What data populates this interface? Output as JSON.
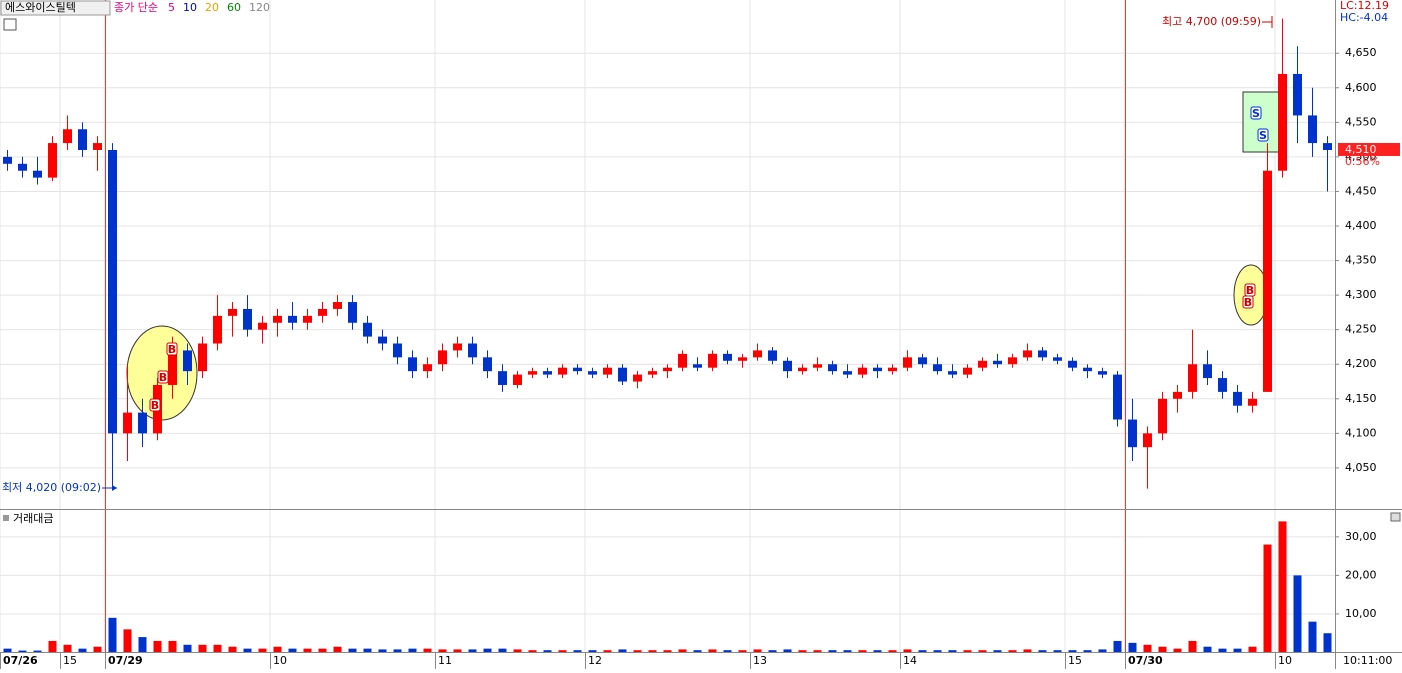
{
  "chart_data": {
    "type": "candlestick",
    "title": "에스와이스틸텍",
    "indicator": "종가 단순",
    "ma_periods": [
      5,
      10,
      20,
      60,
      120
    ],
    "ma_colors": [
      "#e0007f",
      "#0000cc",
      "#e8a000",
      "#008800",
      "#888888"
    ],
    "lc_label": "LC:12.19",
    "hc_label": "HC:-4.04",
    "up_color": "#ff0000",
    "down_color": "#0033cc",
    "grid": true,
    "categories": [
      "07/26",
      null,
      null,
      null,
      "15",
      null,
      null,
      "07/29",
      null,
      null,
      null,
      null,
      null,
      null,
      null,
      null,
      null,
      null,
      "10",
      null,
      null,
      null,
      null,
      null,
      null,
      null,
      null,
      null,
      null,
      "11",
      null,
      null,
      null,
      null,
      null,
      null,
      null,
      null,
      null,
      "12",
      null,
      null,
      null,
      null,
      null,
      null,
      null,
      null,
      null,
      null,
      "13",
      null,
      null,
      null,
      null,
      null,
      null,
      null,
      null,
      null,
      "14",
      null,
      null,
      null,
      null,
      null,
      null,
      null,
      null,
      null,
      null,
      "15",
      null,
      null,
      null,
      "07/30",
      null,
      null,
      null,
      null,
      null,
      null,
      null,
      null,
      null,
      "10",
      null,
      null,
      null
    ],
    "open": [
      4500,
      4490,
      4480,
      4470,
      4520,
      4540,
      4510,
      4510,
      4100,
      4130,
      4100,
      4170,
      4220,
      4190,
      4230,
      4270,
      4280,
      4250,
      4260,
      4270,
      4260,
      4270,
      4280,
      4290,
      4260,
      4240,
      4230,
      4210,
      4190,
      4200,
      4220,
      4230,
      4210,
      4190,
      4170,
      4185,
      4190,
      4185,
      4195,
      4190,
      4185,
      4195,
      4175,
      4185,
      4190,
      4195,
      4200,
      4195,
      4215,
      4205,
      4210,
      4220,
      4205,
      4190,
      4195,
      4200,
      4190,
      4185,
      4195,
      4190,
      4195,
      4210,
      4200,
      4190,
      4185,
      4195,
      4205,
      4200,
      4210,
      4220,
      4210,
      4205,
      4195,
      4190,
      4185,
      4120,
      4080,
      4100,
      4150,
      4160,
      4200,
      4180,
      4160,
      4140,
      4160,
      4480,
      4620,
      4560,
      4520
    ],
    "high": [
      4510,
      4500,
      4500,
      4530,
      4560,
      4550,
      4530,
      4520,
      4200,
      4150,
      4180,
      4240,
      4230,
      4240,
      4300,
      4290,
      4300,
      4270,
      4280,
      4290,
      4280,
      4290,
      4300,
      4300,
      4270,
      4250,
      4240,
      4220,
      4210,
      4230,
      4240,
      4240,
      4220,
      4200,
      4190,
      4195,
      4195,
      4200,
      4200,
      4195,
      4200,
      4200,
      4190,
      4195,
      4200,
      4220,
      4210,
      4220,
      4220,
      4215,
      4230,
      4225,
      4210,
      4200,
      4210,
      4205,
      4200,
      4200,
      4200,
      4200,
      4220,
      4215,
      4210,
      4200,
      4200,
      4210,
      4215,
      4215,
      4230,
      4225,
      4215,
      4210,
      4200,
      4195,
      4190,
      4150,
      4110,
      4160,
      4170,
      4250,
      4220,
      4190,
      4170,
      4160,
      4520,
      4700,
      4660,
      4600,
      4530
    ],
    "low": [
      4480,
      4470,
      4460,
      4465,
      4510,
      4500,
      4480,
      4020,
      4060,
      4080,
      4090,
      4150,
      4170,
      4180,
      4220,
      4240,
      4240,
      4230,
      4240,
      4250,
      4250,
      4260,
      4270,
      4250,
      4230,
      4220,
      4200,
      4180,
      4180,
      4190,
      4210,
      4200,
      4180,
      4160,
      4165,
      4180,
      4180,
      4180,
      4185,
      4180,
      4180,
      4170,
      4165,
      4180,
      4180,
      4190,
      4190,
      4190,
      4200,
      4195,
      4205,
      4200,
      4180,
      4185,
      4190,
      4185,
      4180,
      4180,
      4180,
      4185,
      4190,
      4195,
      4185,
      4180,
      4180,
      4190,
      4195,
      4195,
      4205,
      4205,
      4200,
      4190,
      4180,
      4180,
      4110,
      4060,
      4020,
      4090,
      4130,
      4150,
      4170,
      4150,
      4130,
      4130,
      4160,
      4470,
      4520,
      4500,
      4450
    ],
    "close": [
      4490,
      4480,
      4470,
      4520,
      4540,
      4510,
      4520,
      4100,
      4130,
      4100,
      4170,
      4220,
      4190,
      4230,
      4270,
      4280,
      4250,
      4260,
      4270,
      4260,
      4270,
      4280,
      4290,
      4260,
      4240,
      4230,
      4210,
      4190,
      4200,
      4220,
      4230,
      4210,
      4190,
      4170,
      4185,
      4190,
      4185,
      4195,
      4190,
      4185,
      4195,
      4175,
      4185,
      4190,
      4195,
      4215,
      4195,
      4215,
      4205,
      4210,
      4220,
      4205,
      4190,
      4195,
      4200,
      4190,
      4185,
      4195,
      4190,
      4195,
      4210,
      4200,
      4190,
      4185,
      4195,
      4205,
      4200,
      4210,
      4220,
      4210,
      4205,
      4195,
      4190,
      4185,
      4120,
      4080,
      4100,
      4150,
      4160,
      4200,
      4180,
      4160,
      4140,
      4150,
      4480,
      4620,
      4560,
      4520,
      4510
    ],
    "ylim": [
      3992,
      4727
    ],
    "yticks": [
      {
        "value": 4050,
        "label": "4,050"
      },
      {
        "value": 4100,
        "label": "4,100"
      },
      {
        "value": 4150,
        "label": "4,150"
      },
      {
        "value": 4200,
        "label": "4,200"
      },
      {
        "value": 4250,
        "label": "4,250"
      },
      {
        "value": 4300,
        "label": "4,300"
      },
      {
        "value": 4350,
        "label": "4,350"
      },
      {
        "value": 4400,
        "label": "4,400"
      },
      {
        "value": 4450,
        "label": "4,450"
      },
      {
        "value": 4500,
        "label": "4,500"
      },
      {
        "value": 4550,
        "label": "4,550"
      },
      {
        "value": 4600,
        "label": "4,600"
      },
      {
        "value": 4650,
        "label": "4,650"
      }
    ],
    "last_price": {
      "value": 4510,
      "label": "4,510"
    },
    "change_label": "0.56%",
    "annotations": [
      "최고 4,700 (09:59)",
      "최저 4,020 (09:02)"
    ],
    "markers": [
      "B",
      "B",
      "B",
      "B",
      "B",
      "S",
      "S"
    ],
    "volume": {
      "title": "거래대금",
      "values": [
        1,
        0.5,
        0.5,
        3,
        2,
        1,
        1.5,
        9,
        6,
        4,
        3,
        3,
        2,
        2,
        2,
        1.5,
        1,
        1,
        1.5,
        1,
        1,
        1,
        1.5,
        1,
        1,
        0.8,
        0.8,
        1,
        1,
        0.8,
        0.8,
        0.8,
        1,
        1,
        0.8,
        0.6,
        0.6,
        0.6,
        0.6,
        0.6,
        0.6,
        0.8,
        0.6,
        0.6,
        0.6,
        0.8,
        0.6,
        0.8,
        0.6,
        0.6,
        0.8,
        0.6,
        0.8,
        0.6,
        0.6,
        0.6,
        0.6,
        0.6,
        0.6,
        0.6,
        0.8,
        0.6,
        0.6,
        0.6,
        0.6,
        0.6,
        0.6,
        0.6,
        0.8,
        0.6,
        0.6,
        0.6,
        0.6,
        0.8,
        3,
        2.5,
        2,
        1.5,
        1,
        3,
        1.5,
        1,
        1,
        1.5,
        28,
        34,
        20,
        8,
        5
      ],
      "ylim": [
        0,
        36.7
      ],
      "yticks": [
        {
          "value": 10,
          "label": "10,00"
        },
        {
          "value": 20,
          "label": "20,00"
        },
        {
          "value": 30,
          "label": "30,00"
        }
      ]
    },
    "time_label": "10:11:00"
  }
}
